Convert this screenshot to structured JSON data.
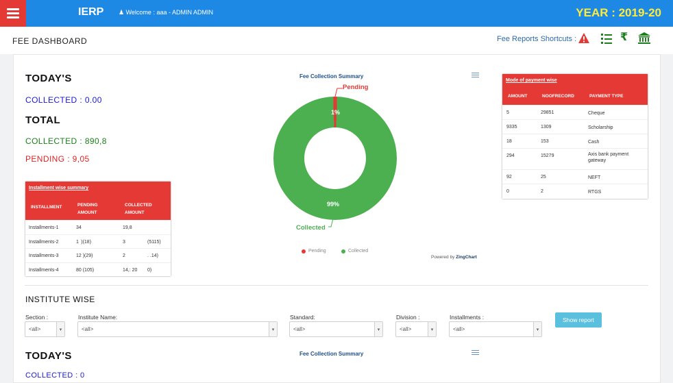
{
  "header": {
    "brand": "IERP",
    "welcome": "Welcome :  aaa - ADMIN ADMIN",
    "year": "YEAR : 2019-20"
  },
  "subheader": {
    "title": "FEE DASHBOARD",
    "shortcuts_label": "Fee Reports Shortcuts :",
    "shortcut_icons": [
      "warning-icon",
      "list-icon",
      "rupee-icon",
      "bank-icon"
    ]
  },
  "summary": {
    "today_heading": "TODAY'S",
    "today_collected": "COLLECTED : 0.00",
    "total_heading": "TOTAL",
    "total_collected": "COLLECTED : 890,8",
    "total_pending": "PENDING : 9,05"
  },
  "installment_table": {
    "title": "Installment wise summary",
    "columns": [
      "INSTALLMENT",
      "PENDING AMOUNT",
      "COLLECTED AMOUNT"
    ],
    "rows": [
      [
        "Installments-1",
        "34",
        "19,8",
        ""
      ],
      [
        "Installments-2",
        "1       )(18)",
        "3",
        "(5115)"
      ],
      [
        "Installments-3",
        "12      )(29)",
        "2",
        ". .14)"
      ],
      [
        "Installments-4",
        "80 (105)",
        "14,:    20",
        "0)"
      ]
    ]
  },
  "chart": {
    "title": "Fee Collection Summary",
    "powered_by": "Powered by",
    "powered_brand": "ZingChart",
    "colors": {
      "pending": "#e53935",
      "collected": "#4caf50"
    }
  },
  "chart_data": {
    "type": "pie",
    "title": "Fee Collection Summary",
    "series": [
      {
        "name": "Pending",
        "value": 1,
        "label": "1%"
      },
      {
        "name": "Collected",
        "value": 99,
        "label": "99%"
      }
    ],
    "legend": "bottom"
  },
  "payment_table": {
    "title": "Mode of payment wise",
    "columns": [
      "AMOUNT",
      "NOOFRECORD",
      "PAYMENT TYPE"
    ],
    "rows": [
      [
        "5",
        "29851",
        "Cheque"
      ],
      [
        "9335",
        "1309",
        "Scholarship"
      ],
      [
        "18",
        "153",
        "Cash"
      ],
      [
        "294",
        "15279",
        "Axis bank payment gateway"
      ],
      [
        "92",
        "25",
        "NEFT"
      ],
      [
        "0",
        "2",
        "RTGS"
      ]
    ]
  },
  "institute": {
    "heading": "INSTITUTE WISE",
    "filters": {
      "section_label": "Section :",
      "institute_label": "Institute Name:",
      "standard_label": "Standard:",
      "division_label": "Division :",
      "installments_label": "Installments :",
      "all_value": "<all>"
    },
    "show_report": "Show report",
    "today_heading": "TODAY'S",
    "today_collected": "COLLECTED : 0",
    "chart_title": "Fee Collection Summary"
  }
}
